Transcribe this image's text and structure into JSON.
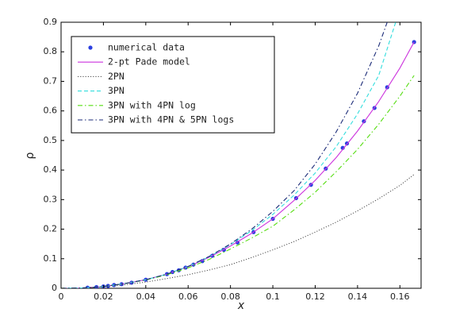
{
  "chart_data": {
    "type": "line",
    "xlabel": "x",
    "ylabel": "ρ",
    "xlim": [
      0,
      0.17
    ],
    "ylim": [
      0,
      0.9
    ],
    "xticks": [
      0,
      0.02,
      0.04,
      0.06,
      0.08,
      0.1,
      0.12,
      0.14,
      0.16
    ],
    "yticks": [
      0,
      0.1,
      0.2,
      0.3,
      0.4,
      0.5,
      0.6,
      0.7,
      0.8,
      0.9
    ],
    "legend": "upper left",
    "series": [
      {
        "name": "numerical data",
        "color": "#2b3fe0",
        "mode": "markers",
        "x": [
          0.0125,
          0.0167,
          0.02,
          0.0222,
          0.025,
          0.0286,
          0.0333,
          0.04,
          0.05,
          0.0526,
          0.0556,
          0.0588,
          0.0625,
          0.0667,
          0.0714,
          0.0769,
          0.0833,
          0.0909,
          0.1,
          0.111,
          0.118,
          0.125,
          0.133,
          0.135,
          0.143,
          0.148,
          0.154,
          0.1667
        ],
        "values": [
          0.002,
          0.004,
          0.006,
          0.008,
          0.011,
          0.014,
          0.019,
          0.029,
          0.048,
          0.055,
          0.061,
          0.07,
          0.08,
          0.092,
          0.11,
          0.13,
          0.155,
          0.19,
          0.235,
          0.305,
          0.35,
          0.405,
          0.475,
          0.49,
          0.565,
          0.61,
          0.68,
          0.833
        ]
      },
      {
        "name": "2-pt Pade model",
        "color": "#cc33dd",
        "mode": "solid",
        "x": [
          0,
          0.01,
          0.02,
          0.03,
          0.04,
          0.05,
          0.06,
          0.07,
          0.08,
          0.09,
          0.1,
          0.11,
          0.12,
          0.13,
          0.14,
          0.15,
          0.16,
          0.1667
        ],
        "values": [
          0,
          0.001,
          0.006,
          0.016,
          0.029,
          0.048,
          0.073,
          0.105,
          0.143,
          0.186,
          0.235,
          0.297,
          0.365,
          0.443,
          0.532,
          0.632,
          0.745,
          0.833
        ]
      },
      {
        "name": "2PN",
        "color": "#555555",
        "mode": "dotted",
        "x": [
          0,
          0.01,
          0.02,
          0.03,
          0.04,
          0.05,
          0.06,
          0.07,
          0.08,
          0.09,
          0.1,
          0.11,
          0.12,
          0.13,
          0.14,
          0.15,
          0.16,
          0.1667
        ],
        "values": [
          0,
          0.001,
          0.005,
          0.012,
          0.021,
          0.033,
          0.046,
          0.062,
          0.08,
          0.104,
          0.13,
          0.158,
          0.19,
          0.224,
          0.262,
          0.303,
          0.348,
          0.385
        ]
      },
      {
        "name": "3PN",
        "color": "#33dddd",
        "mode": "dashed",
        "x": [
          0,
          0.01,
          0.02,
          0.03,
          0.04,
          0.05,
          0.06,
          0.07,
          0.08,
          0.09,
          0.1,
          0.11,
          0.12,
          0.13,
          0.14,
          0.15,
          0.158
        ],
        "values": [
          0,
          0.001,
          0.006,
          0.016,
          0.029,
          0.048,
          0.074,
          0.107,
          0.148,
          0.195,
          0.25,
          0.315,
          0.39,
          0.48,
          0.59,
          0.72,
          0.9
        ]
      },
      {
        "name": "3PN with 4PN log",
        "color": "#55dd11",
        "mode": "dashdot",
        "x": [
          0,
          0.01,
          0.02,
          0.03,
          0.04,
          0.05,
          0.06,
          0.07,
          0.08,
          0.09,
          0.1,
          0.11,
          0.12,
          0.13,
          0.14,
          0.15,
          0.16,
          0.1667
        ],
        "values": [
          0,
          0.001,
          0.006,
          0.016,
          0.028,
          0.046,
          0.069,
          0.098,
          0.133,
          0.17,
          0.21,
          0.265,
          0.325,
          0.395,
          0.47,
          0.555,
          0.65,
          0.72
        ]
      },
      {
        "name": "3PN with 4PN & 5PN logs",
        "color": "#1a2a77",
        "mode": "dashdot",
        "x": [
          0,
          0.01,
          0.02,
          0.03,
          0.04,
          0.05,
          0.06,
          0.07,
          0.08,
          0.09,
          0.1,
          0.11,
          0.12,
          0.13,
          0.14,
          0.15,
          0.154
        ],
        "values": [
          0,
          0.001,
          0.006,
          0.016,
          0.029,
          0.048,
          0.074,
          0.108,
          0.15,
          0.2,
          0.26,
          0.33,
          0.42,
          0.53,
          0.66,
          0.82,
          0.9
        ]
      }
    ]
  }
}
